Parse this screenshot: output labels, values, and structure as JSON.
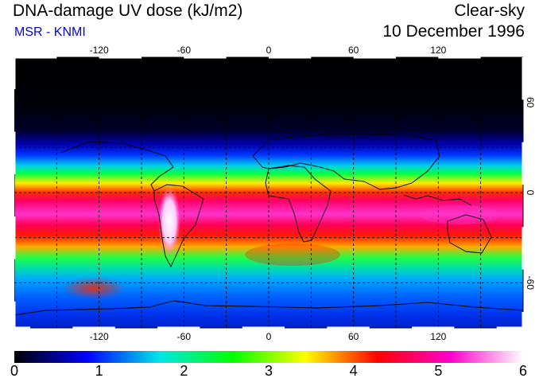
{
  "header": {
    "title": "DNA-damage UV dose (kJ/m2)",
    "subtitle": "MSR - KNMI",
    "sky_condition": "Clear-sky",
    "date": "10 December 1996"
  },
  "map": {
    "projection": "equirectangular",
    "lon_range": [
      -180,
      180
    ],
    "lat_range": [
      -90,
      90
    ],
    "grid_lines_dashed": true,
    "lon_ticks": [
      {
        "value": -120,
        "label": "-120"
      },
      {
        "value": -60,
        "label": "-60"
      },
      {
        "value": 0,
        "label": "0"
      },
      {
        "value": 60,
        "label": "60"
      },
      {
        "value": 120,
        "label": "120"
      }
    ],
    "lat_ticks": [
      {
        "value": 60,
        "label": "60"
      },
      {
        "value": 0,
        "label": "0"
      },
      {
        "value": -60,
        "label": "-60"
      }
    ]
  },
  "colorbar": {
    "min": 0,
    "max": 6,
    "tick_labels": [
      "0",
      "1",
      "2",
      "3",
      "4",
      "5",
      "6"
    ],
    "color_stops": [
      "#000000",
      "#0000ff",
      "#00e6e6",
      "#00ff00",
      "#ffff00",
      "#ff0000",
      "#ff00cc",
      "#ffffff"
    ]
  },
  "colors": {
    "subtitle": "#0000ee",
    "coastline": "#000000",
    "grid": "#000000"
  }
}
